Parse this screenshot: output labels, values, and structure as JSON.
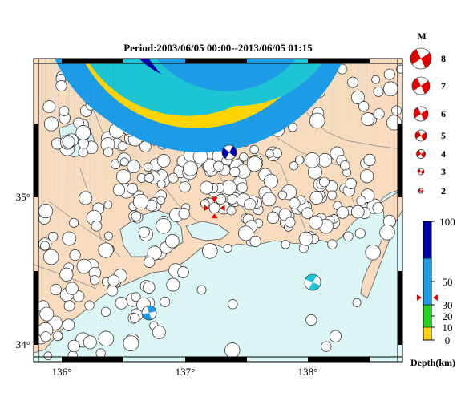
{
  "title": "Period:2003/06/05 00:00--2013/06/05 01:15",
  "colors": {
    "land": "#f9dcbf",
    "sea": "#dcf6f6",
    "border": "#8a8a8a",
    "coast": "#555555",
    "depth_0_10": "#ffd400",
    "depth_10_30": "#22d41a",
    "depth_30_50": "#1e9be6",
    "depth_50_100": "#0000a8",
    "shallow_cyan": "#1dc4d4",
    "highlight": "#e00000"
  },
  "magnitude_legend": {
    "header": "M",
    "entries": [
      "8",
      "7",
      "6",
      "5",
      "4",
      "3",
      "2"
    ]
  },
  "depth_legend": {
    "label": "Depth(km)",
    "ticks": [
      "100",
      "50",
      "30",
      "20",
      "10",
      "0"
    ],
    "current_event_depth_km": 38
  },
  "axes": {
    "x_ticks": [
      "136°",
      "137°",
      "138°"
    ],
    "y_ticks": [
      "35°",
      "34°"
    ],
    "lon_range": [
      135.8,
      138.9
    ],
    "lat_range": [
      33.9,
      35.95
    ]
  },
  "highlighted_event": {
    "lon": 137.32,
    "lat": 34.94,
    "magnitude": 4.5
  }
}
